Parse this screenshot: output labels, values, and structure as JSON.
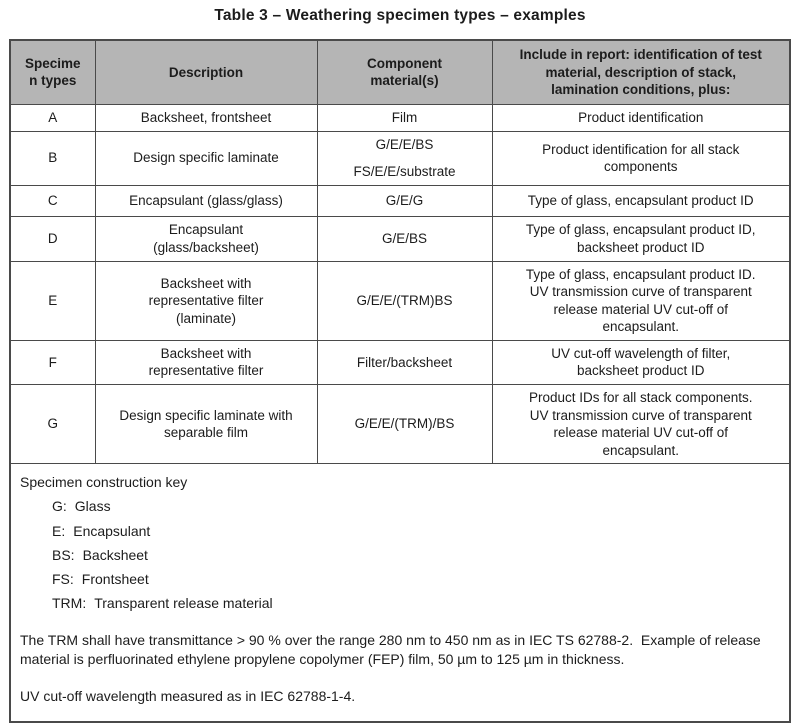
{
  "title": "Table 3 – Weathering specimen types – examples",
  "colors": {
    "header_bg": "#b5b5b5",
    "border": "#4a4a4a",
    "text": "#1c1c1c"
  },
  "table": {
    "headers": [
      "Specime\nn types",
      "Description",
      "Component\nmaterial(s)",
      "Include in report: identification of test\nmaterial, description of stack,\nlamination conditions, plus:"
    ],
    "rows": [
      {
        "type": "A",
        "description": "Backsheet, frontsheet",
        "materials": [
          "Film"
        ],
        "report": "Product identification"
      },
      {
        "type": "B",
        "description": "Design specific laminate",
        "materials": [
          "G/E/E/BS",
          "FS/E/E/substrate"
        ],
        "report": "Product identification for all stack\ncomponents"
      },
      {
        "type": "C",
        "description": "Encapsulant (glass/glass)",
        "materials": [
          "G/E/G"
        ],
        "report": "Type of glass, encapsulant product ID"
      },
      {
        "type": "D",
        "description": "Encapsulant\n(glass/backsheet)",
        "materials": [
          "G/E/BS"
        ],
        "report": "Type of glass, encapsulant product ID,\nbacksheet product ID"
      },
      {
        "type": "E",
        "description": "Backsheet with\nrepresentative filter\n(laminate)",
        "materials": [
          "G/E/E/(TRM)BS"
        ],
        "report": "Type of glass, encapsulant product ID.\nUV transmission curve of transparent\nrelease material UV cut-off of\nencapsulant."
      },
      {
        "type": "F",
        "description": "Backsheet with\nrepresentative filter",
        "materials": [
          "Filter/backsheet"
        ],
        "report": "UV cut-off wavelength of filter,\nbacksheet product ID"
      },
      {
        "type": "G",
        "description": "Design specific laminate with\nseparable film",
        "materials": [
          "G/E/E/(TRM)/BS"
        ],
        "report": "Product IDs for all stack components.\nUV transmission curve of transparent\nrelease material UV cut-off of\nencapsulant."
      }
    ],
    "footer": {
      "key_title": "Specimen construction key",
      "key_items": [
        {
          "abbr": "G:",
          "meaning": "Glass"
        },
        {
          "abbr": "E:",
          "meaning": "Encapsulant"
        },
        {
          "abbr": "BS:",
          "meaning": "Backsheet"
        },
        {
          "abbr": "FS:",
          "meaning": "Frontsheet"
        },
        {
          "abbr": "TRM:",
          "meaning": "Transparent release material"
        }
      ],
      "notes": [
        "The TRM shall have transmittance > 90 % over the range 280 nm to 450 nm as in IEC TS 62788-2.  Example of release material is perfluorinated ethylene propylene copolymer (FEP) film, 50 µm to 125 µm in thickness.",
        "UV cut-off wavelength measured as in IEC 62788-1-4."
      ]
    }
  }
}
